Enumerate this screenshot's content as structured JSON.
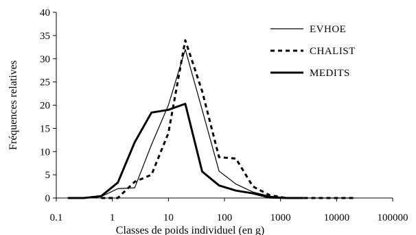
{
  "chart_data": {
    "type": "line",
    "title": "",
    "xlabel": "Classes de poids individuel (en g)",
    "ylabel": "Fréquences relatives",
    "xscale": "log",
    "xlim": [
      0.1,
      100000
    ],
    "ylim": [
      0,
      40
    ],
    "x_ticks": [
      0.1,
      1,
      10,
      100,
      1000,
      10000,
      100000
    ],
    "x_tick_labels": [
      "0.1",
      "1",
      "10",
      "100",
      "1000",
      "10000",
      "100000"
    ],
    "y_ticks": [
      0,
      5,
      10,
      15,
      20,
      25,
      30,
      35,
      40
    ],
    "y_tick_labels": [
      "0",
      "5",
      "10",
      "15",
      "20",
      "25",
      "30",
      "35",
      "40"
    ],
    "grid": false,
    "legend_position": "top-right",
    "series": [
      {
        "name": "EVHOE",
        "style": "thin-solid",
        "color": "#000000",
        "points": [
          [
            0.16,
            0
          ],
          [
            0.31,
            0
          ],
          [
            0.63,
            0.3
          ],
          [
            1.25,
            2.0
          ],
          [
            2.5,
            2.2
          ],
          [
            5,
            11.5
          ],
          [
            10,
            20.0
          ],
          [
            20,
            32.0
          ],
          [
            40,
            19.0
          ],
          [
            80,
            5.8
          ],
          [
            160,
            3.0
          ],
          [
            320,
            1.3
          ],
          [
            640,
            0.4
          ],
          [
            1280,
            0.1
          ],
          [
            2560,
            0
          ],
          [
            5120,
            0
          ],
          [
            10240,
            0
          ],
          [
            20480,
            0
          ]
        ]
      },
      {
        "name": "CHALIST",
        "style": "dashed",
        "color": "#000000",
        "points": [
          [
            0.63,
            0
          ],
          [
            1.25,
            0
          ],
          [
            2.5,
            3.5
          ],
          [
            5,
            5.0
          ],
          [
            10,
            14.0
          ],
          [
            20,
            34.0
          ],
          [
            40,
            23.0
          ],
          [
            80,
            8.8
          ],
          [
            160,
            8.5
          ],
          [
            320,
            2.5
          ],
          [
            640,
            0.6
          ],
          [
            1280,
            0
          ],
          [
            2560,
            0
          ],
          [
            5120,
            0
          ],
          [
            10240,
            0
          ],
          [
            20480,
            0
          ]
        ]
      },
      {
        "name": "MEDITS",
        "style": "thick-solid",
        "color": "#000000",
        "points": [
          [
            0.16,
            0
          ],
          [
            0.31,
            0
          ],
          [
            0.63,
            0.4
          ],
          [
            1.25,
            3.3
          ],
          [
            2.5,
            12.0
          ],
          [
            5,
            18.4
          ],
          [
            10,
            19.0
          ],
          [
            20,
            20.3
          ],
          [
            40,
            5.7
          ],
          [
            80,
            2.7
          ],
          [
            160,
            1.6
          ],
          [
            320,
            1.0
          ],
          [
            640,
            0.1
          ],
          [
            1280,
            0
          ],
          [
            2560,
            0
          ]
        ]
      }
    ]
  }
}
